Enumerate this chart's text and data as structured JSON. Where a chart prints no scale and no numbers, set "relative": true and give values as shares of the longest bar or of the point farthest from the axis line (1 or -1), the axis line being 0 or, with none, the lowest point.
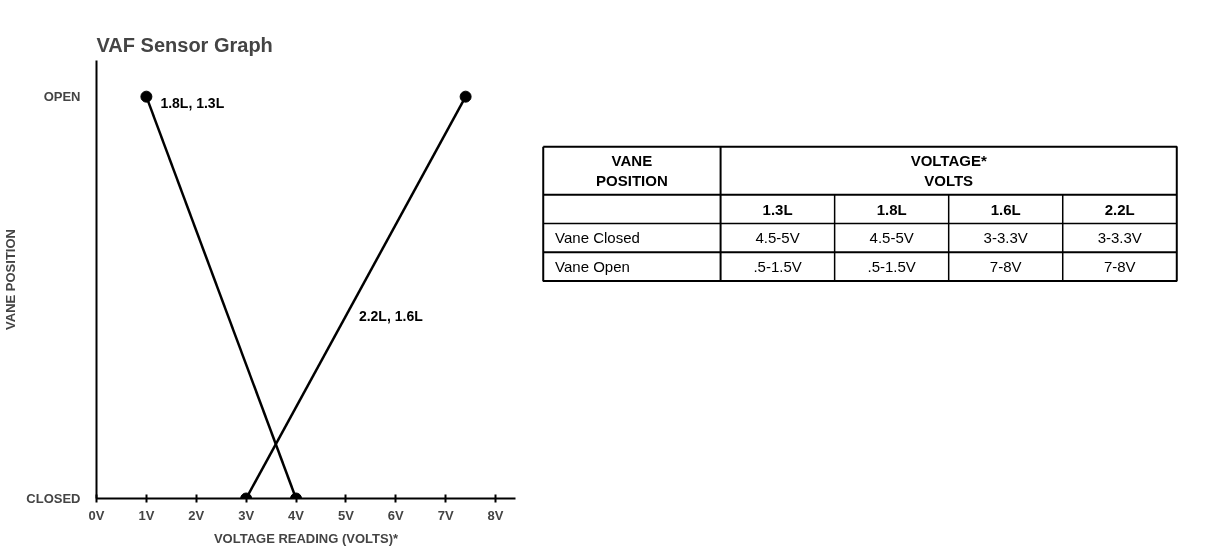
{
  "chart_data": [
    {
      "type": "line",
      "title": "VAF Sensor Graph",
      "xlabel": "VOLTAGE READING (VOLTS)*",
      "ylabel": "VANE POSITION",
      "xlim": [
        0,
        8.4
      ],
      "xticks": [
        {
          "value": 0,
          "label": "0V"
        },
        {
          "value": 1,
          "label": "1V"
        },
        {
          "value": 2,
          "label": "2V"
        },
        {
          "value": 3,
          "label": "3V"
        },
        {
          "value": 4,
          "label": "4V"
        },
        {
          "value": 5,
          "label": "5V"
        },
        {
          "value": 6,
          "label": "6V"
        },
        {
          "value": 7,
          "label": "7V"
        },
        {
          "value": 8,
          "label": "8V"
        }
      ],
      "relative": true,
      "annotations": [
        "OPEN",
        "CLOSED"
      ],
      "marker": "circle",
      "line_style": "solid",
      "grid": false,
      "series": [
        {
          "name": "1.8L, 1.3L",
          "color": "#000000",
          "x": [
            1,
            4
          ],
          "values": [
            1,
            0
          ]
        },
        {
          "name": "2.2L, 1.6L",
          "color": "#000000",
          "x": [
            3,
            7.4
          ],
          "values": [
            0,
            1
          ]
        }
      ]
    },
    {
      "type": "other",
      "ylabel": "VANE POSITION",
      "title": "VOLTAGE*\nVOLTS",
      "categories": [
        "1.3L",
        "1.8L",
        "1.6L",
        "2.2L"
      ],
      "y_categories": [
        "Vane Closed",
        "Vane Open"
      ],
      "cell_labels": [
        [
          "4.5-5V",
          "4.5-5V",
          "3-3.3V",
          "3-3.3V"
        ],
        [
          ".5-1.5V",
          ".5-1.5V",
          "7-8V",
          "7-8V"
        ]
      ]
    }
  ]
}
